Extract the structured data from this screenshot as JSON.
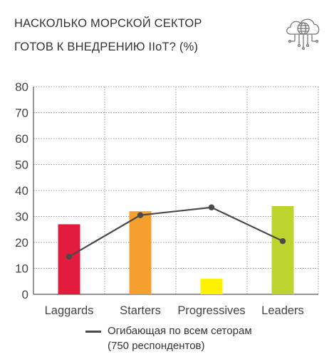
{
  "title_line1": "НАСКОЛЬКО МОРСКОЙ СЕКТОР",
  "title_line2": "ГОТОВ К ВНЕДРЕНИЮ  IIoT? (%)",
  "icon": "cloud-network-icon",
  "legend": {
    "line1": "Огибающая по всем сетoрам",
    "line2": "(750 респондентов)"
  },
  "chart_data": {
    "type": "bar",
    "categories": [
      "Laggards",
      "Starters",
      "Progressives",
      "Leaders"
    ],
    "values": [
      27,
      32,
      6,
      34
    ],
    "colors": [
      "#e31b3c",
      "#f5a02c",
      "#fff200",
      "#bcd52e"
    ],
    "line_series": {
      "values": [
        14.5,
        30.5,
        33.5,
        20.5
      ],
      "color": "#4a4a4a"
    },
    "ylim": [
      0,
      80
    ],
    "yticks": [
      0,
      10,
      20,
      30,
      40,
      50,
      60,
      70,
      80
    ],
    "grid": "dotted",
    "legend_position": "bottom"
  }
}
